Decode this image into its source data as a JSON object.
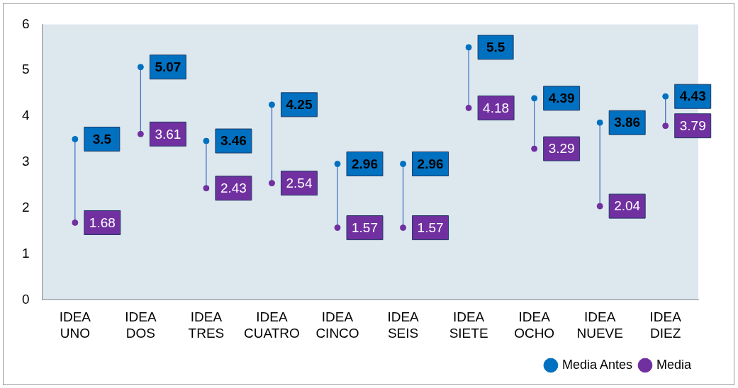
{
  "chart_data": {
    "type": "scatter",
    "categories": [
      "IDEA UNO",
      "IDEA DOS",
      "IDEA TRES",
      "IDEA CUATRO",
      "IDEA CINCO",
      "IDEA SEIS",
      "IDEA SIETE",
      "IDEA OCHO",
      "IDEA NUEVE",
      "IDEA DIEZ"
    ],
    "series": [
      {
        "name": "Media Antes",
        "color": "#0070c0",
        "values": [
          3.5,
          5.07,
          3.46,
          4.25,
          2.96,
          2.96,
          5.5,
          4.39,
          3.86,
          4.43
        ]
      },
      {
        "name": "Media",
        "color": "#7030a0",
        "values": [
          1.68,
          3.61,
          2.43,
          2.54,
          1.57,
          1.57,
          4.18,
          3.29,
          2.04,
          3.79
        ]
      }
    ],
    "ylim": [
      0,
      6
    ],
    "yticks": [
      0,
      1,
      2,
      3,
      4,
      5,
      6
    ],
    "grid": false,
    "legend": "bottom right",
    "marker": "circle",
    "data_labels": true
  }
}
